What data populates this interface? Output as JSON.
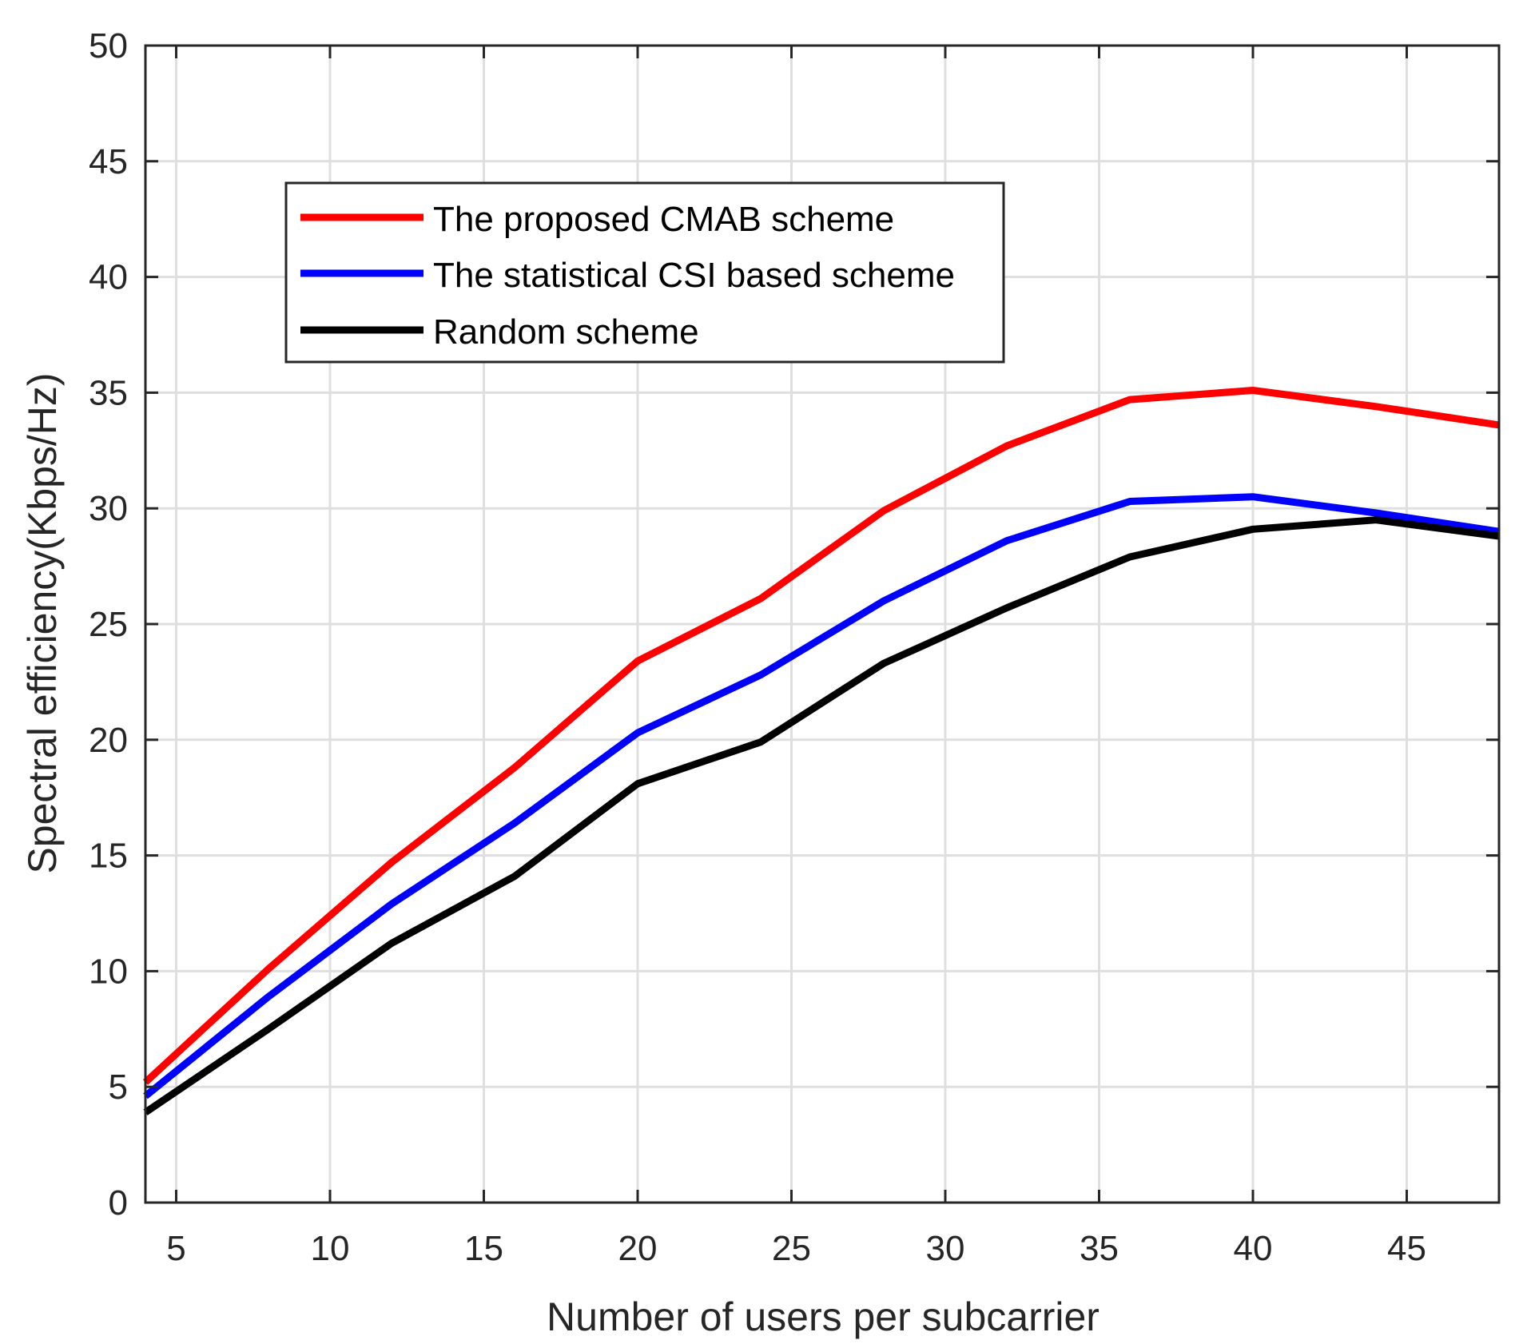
{
  "chart_data": {
    "type": "line",
    "title": "",
    "xlabel": "Number of users per subcarrier",
    "ylabel": "Spectral efficiency(Kbps/Hz)",
    "xlim": [
      4,
      48
    ],
    "ylim": [
      0,
      50
    ],
    "xticks": [
      5,
      10,
      15,
      20,
      25,
      30,
      35,
      40,
      45
    ],
    "yticks": [
      0,
      5,
      10,
      15,
      20,
      25,
      30,
      35,
      40,
      45,
      50
    ],
    "grid": true,
    "legend_position": "top-left",
    "x": [
      4,
      8,
      12,
      16,
      20,
      24,
      28,
      32,
      36,
      40,
      44,
      48
    ],
    "series": [
      {
        "name": "The proposed CMAB scheme",
        "color": "#ff0000",
        "values": [
          5.2,
          10.1,
          14.7,
          18.8,
          23.4,
          26.1,
          29.9,
          32.7,
          34.7,
          35.1,
          34.4,
          33.6
        ]
      },
      {
        "name": "The statistical CSI based scheme",
        "color": "#0000ff",
        "values": [
          4.6,
          8.9,
          12.9,
          16.4,
          20.3,
          22.8,
          26.0,
          28.6,
          30.3,
          30.5,
          29.8,
          29.0
        ]
      },
      {
        "name": "Random scheme",
        "color": "#000000",
        "values": [
          3.9,
          7.5,
          11.2,
          14.1,
          18.1,
          19.9,
          23.3,
          25.7,
          27.9,
          29.1,
          29.5,
          28.8
        ]
      }
    ]
  }
}
